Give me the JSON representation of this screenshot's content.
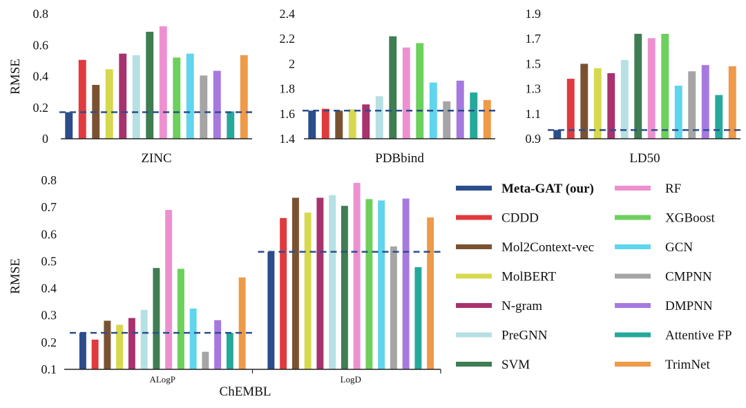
{
  "legend": {
    "items": [
      {
        "label": "Meta-GAT (our)",
        "color": "#2b4d8c",
        "bold": true
      },
      {
        "label": "CDDD",
        "color": "#e03a3e"
      },
      {
        "label": "Mol2Context-vec",
        "color": "#7a5232"
      },
      {
        "label": "MolBERT",
        "color": "#d6d94e"
      },
      {
        "label": "N-gram",
        "color": "#a8326e"
      },
      {
        "label": "PreGNN",
        "color": "#b5e0e4"
      },
      {
        "label": "SVM",
        "color": "#3f7d52"
      },
      {
        "label": "RF",
        "color": "#ee90d0"
      },
      {
        "label": "XGBoost",
        "color": "#6cd05c"
      },
      {
        "label": "GCN",
        "color": "#5fd5ee"
      },
      {
        "label": "CMPNN",
        "color": "#a5a5a5"
      },
      {
        "label": "DMPNN",
        "color": "#a679e0"
      },
      {
        "label": "Attentive FP",
        "color": "#25a99c"
      },
      {
        "label": "TrimNet",
        "color": "#ee9a48"
      }
    ]
  },
  "chart_data": [
    {
      "type": "bar",
      "title": "",
      "xlabel": "ZINC",
      "ylabel": "RMSE",
      "ylim": [
        0,
        0.8
      ],
      "yticks": [
        "0",
        "0.2",
        "0.4",
        "0.6",
        "0.8"
      ],
      "reference_line": 0.17,
      "values": [
        0.17,
        0.505,
        0.345,
        0.445,
        0.545,
        0.535,
        0.685,
        0.72,
        0.52,
        0.545,
        0.405,
        0.435,
        0.175,
        0.535
      ]
    },
    {
      "type": "bar",
      "title": "",
      "xlabel": "PDBbind",
      "ylabel": "",
      "ylim": [
        1.4,
        2.4
      ],
      "yticks": [
        "1.4",
        "1.6",
        "1.8",
        "2",
        "2.2",
        "2.4"
      ],
      "reference_line": 1.625,
      "values": [
        1.625,
        1.64,
        1.625,
        1.635,
        1.675,
        1.74,
        2.22,
        2.13,
        2.165,
        1.85,
        1.7,
        1.865,
        1.77,
        1.71
      ]
    },
    {
      "type": "bar",
      "title": "",
      "xlabel": "LD50",
      "ylabel": "",
      "ylim": [
        0.9,
        1.9
      ],
      "yticks": [
        "0.9",
        "1.1",
        "1.3",
        "1.5",
        "1.7",
        "1.9"
      ],
      "reference_line": 0.97,
      "values": [
        0.97,
        1.38,
        1.5,
        1.465,
        1.425,
        1.53,
        1.74,
        1.705,
        1.74,
        1.325,
        1.44,
        1.49,
        1.25,
        1.48
      ]
    },
    {
      "type": "bar",
      "title": "",
      "xlabel": "ChEMBL",
      "ylabel": "RMSE",
      "ylim": [
        0.1,
        0.8
      ],
      "yticks": [
        "0.1",
        "0.2",
        "0.3",
        "0.4",
        "0.5",
        "0.6",
        "0.7",
        "0.8"
      ],
      "categories": [
        "ALogP",
        "LogD"
      ],
      "reference_lines": [
        0.235,
        0.535
      ],
      "series_values": [
        [
          0.235,
          0.21,
          0.28,
          0.265,
          0.29,
          0.32,
          0.475,
          0.69,
          0.472,
          0.325,
          0.165,
          0.282,
          0.235,
          0.44
        ],
        [
          0.535,
          0.66,
          0.735,
          0.68,
          0.735,
          0.745,
          0.705,
          0.79,
          0.73,
          0.725,
          0.555,
          0.732,
          0.478,
          0.662
        ]
      ]
    }
  ]
}
